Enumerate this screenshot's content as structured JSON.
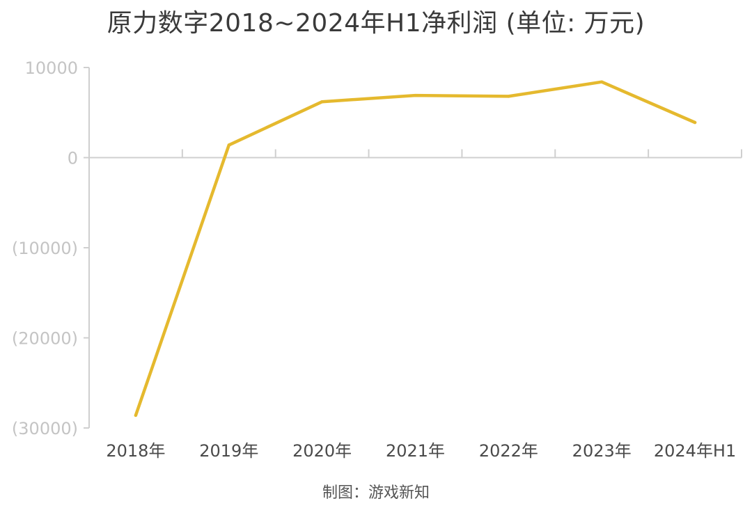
{
  "chart_data": {
    "type": "line",
    "title": "原力数字2018~2024年H1净利润 (单位: 万元)",
    "categories": [
      "2018年",
      "2019年",
      "2020年",
      "2021年",
      "2022年",
      "2023年",
      "2024年H1"
    ],
    "series": [
      {
        "values": [
          -28600,
          1400,
          6200,
          6900,
          6800,
          8400,
          3900
        ]
      }
    ],
    "y_ticks": [
      10000,
      0,
      -10000,
      -20000,
      -30000
    ],
    "y_tick_labels": [
      "10000",
      "0",
      "(10000)",
      "(20000)",
      "(30000)"
    ],
    "ylim": [
      -30000,
      10000
    ],
    "grid": false,
    "legend": "none",
    "xlabel": "",
    "ylabel": ""
  },
  "source_note": "制图：游戏新知",
  "colors": {
    "line": "#e5b92e",
    "axis": "#cfcfcf",
    "title": "#3a3a3a"
  }
}
